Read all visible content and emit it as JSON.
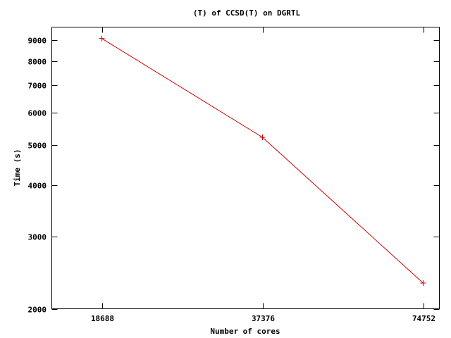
{
  "chart_data": {
    "type": "line",
    "title": "(T) of CCSD(T) on DGRTL",
    "xlabel": "Number of cores",
    "ylabel": "Time (s)",
    "x_scale": "log",
    "y_scale": "log",
    "x": [
      18688,
      37376,
      74752
    ],
    "x_tick_labels": [
      "18688",
      "37376",
      "74752"
    ],
    "y_ticks": [
      2000,
      3000,
      4000,
      5000,
      6000,
      7000,
      8000,
      9000
    ],
    "y_tick_labels": [
      "2000",
      "3000",
      "4000",
      "5000",
      "6000",
      "7000",
      "8000",
      "9000"
    ],
    "ylim": [
      2000,
      9700
    ],
    "series": [
      {
        "values": [
          9100,
          5230,
          2310
        ],
        "color": "#cc0000",
        "marker": "plus"
      }
    ]
  }
}
